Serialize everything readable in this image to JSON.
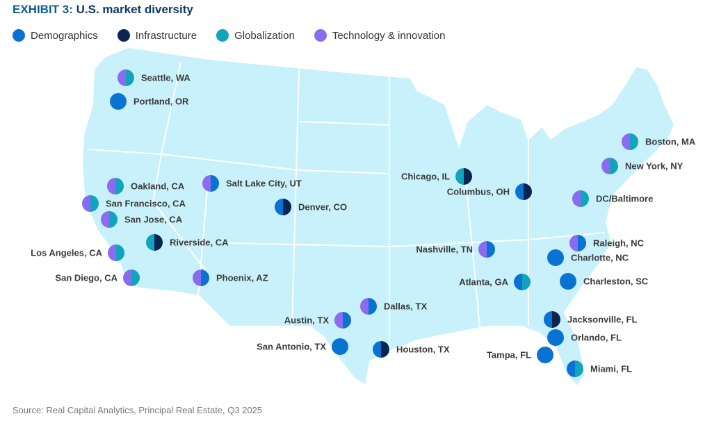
{
  "title": {
    "exhibit": "EXHIBIT 3:",
    "text": "U.S. market diversity"
  },
  "colors": {
    "demographics": "#0a72d2",
    "infrastructure": "#0a2550",
    "globalization": "#13a4bd",
    "technology": "#8a6cf0",
    "land": "#c9f1fb",
    "borders": "#ffffff"
  },
  "legend": [
    {
      "key": "demographics",
      "label": "Demographics"
    },
    {
      "key": "infrastructure",
      "label": "Infrastructure"
    },
    {
      "key": "globalization",
      "label": "Globalization"
    },
    {
      "key": "technology",
      "label": "Technology & innovation"
    }
  ],
  "cities": [
    {
      "name": "Seattle, WA",
      "drivers": [
        "technology",
        "globalization"
      ]
    },
    {
      "name": "Portland, OR",
      "drivers": [
        "demographics"
      ]
    },
    {
      "name": "Oakland, CA",
      "drivers": [
        "technology",
        "globalization"
      ]
    },
    {
      "name": "San Francisco, CA",
      "drivers": [
        "technology",
        "globalization"
      ]
    },
    {
      "name": "San Jose, CA",
      "drivers": [
        "technology",
        "globalization"
      ]
    },
    {
      "name": "Riverside, CA",
      "drivers": [
        "globalization",
        "infrastructure"
      ]
    },
    {
      "name": "Los Angeles, CA",
      "drivers": [
        "technology",
        "globalization"
      ]
    },
    {
      "name": "San Diego, CA",
      "drivers": [
        "technology",
        "globalization"
      ]
    },
    {
      "name": "Salt Lake City, UT",
      "drivers": [
        "technology",
        "demographics"
      ]
    },
    {
      "name": "Phoenix, AZ",
      "drivers": [
        "technology",
        "demographics"
      ]
    },
    {
      "name": "Denver, CO",
      "drivers": [
        "demographics",
        "infrastructure"
      ]
    },
    {
      "name": "Dallas, TX",
      "drivers": [
        "technology",
        "demographics"
      ]
    },
    {
      "name": "Austin, TX",
      "drivers": [
        "technology",
        "demographics"
      ]
    },
    {
      "name": "San Antonio, TX",
      "drivers": [
        "demographics"
      ]
    },
    {
      "name": "Houston, TX",
      "drivers": [
        "demographics",
        "infrastructure"
      ]
    },
    {
      "name": "Chicago, IL",
      "drivers": [
        "globalization",
        "infrastructure"
      ]
    },
    {
      "name": "Columbus, OH",
      "drivers": [
        "demographics",
        "infrastructure"
      ]
    },
    {
      "name": "Boston, MA",
      "drivers": [
        "technology",
        "globalization"
      ]
    },
    {
      "name": "New York, NY",
      "drivers": [
        "technology",
        "globalization"
      ]
    },
    {
      "name": "DC/Baltimore",
      "drivers": [
        "technology",
        "globalization"
      ]
    },
    {
      "name": "Nashville, TN",
      "drivers": [
        "technology",
        "demographics"
      ]
    },
    {
      "name": "Raleigh, NC",
      "drivers": [
        "technology",
        "demographics"
      ]
    },
    {
      "name": "Charlotte, NC",
      "drivers": [
        "demographics"
      ]
    },
    {
      "name": "Charleston, SC",
      "drivers": [
        "demographics"
      ]
    },
    {
      "name": "Atlanta, GA",
      "drivers": [
        "demographics",
        "globalization"
      ]
    },
    {
      "name": "Jacksonville, FL",
      "drivers": [
        "demographics",
        "infrastructure"
      ]
    },
    {
      "name": "Orlando, FL",
      "drivers": [
        "demographics"
      ]
    },
    {
      "name": "Tampa, FL",
      "drivers": [
        "demographics"
      ]
    },
    {
      "name": "Miami, FL",
      "drivers": [
        "demographics",
        "globalization"
      ]
    }
  ],
  "source": "Source: Real Capital Analytics, Principal Real Estate, Q3 2025"
}
